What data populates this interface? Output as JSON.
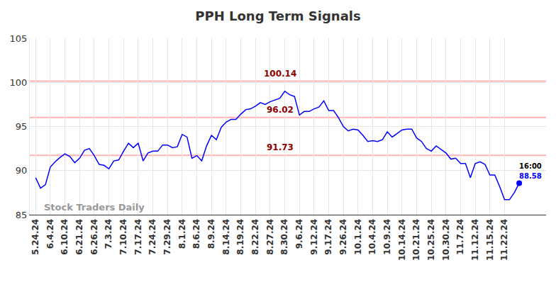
{
  "chart_data": {
    "type": "line",
    "title": "PPH Long Term Signals",
    "categories": [
      "5.24.24",
      null,
      null,
      "6.4.24",
      null,
      null,
      "6.10.24",
      null,
      null,
      "6.21.24",
      null,
      null,
      "6.26.24",
      null,
      null,
      "7.3.24",
      null,
      null,
      "7.10.24",
      null,
      null,
      "7.17.24",
      null,
      null,
      "7.24.24",
      null,
      null,
      "7.29.24",
      null,
      null,
      "8.1.24",
      null,
      null,
      "8.6.24",
      null,
      null,
      "8.9.24",
      null,
      null,
      "8.14.24",
      null,
      null,
      "8.19.24",
      null,
      null,
      "8.22.24",
      null,
      null,
      "8.27.24",
      null,
      null,
      "8.30.24",
      null,
      null,
      "9.6.24",
      null,
      null,
      "9.12.24",
      null,
      null,
      "9.17.24",
      null,
      null,
      "9.26.24",
      null,
      null,
      "10.1.24",
      null,
      null,
      "10.4.24",
      null,
      null,
      "10.9.24",
      null,
      null,
      "10.14.24",
      null,
      null,
      "10.21.24",
      null,
      null,
      "10.25.24",
      null,
      null,
      "10.30.24",
      null,
      null,
      "11.7.24",
      null,
      null,
      "11.12.24",
      null,
      null,
      "11.15.24",
      null,
      null,
      "11.22.24",
      null,
      null,
      null
    ],
    "values": [
      89.2,
      88.0,
      88.4,
      90.4,
      91.0,
      91.5,
      91.9,
      91.6,
      90.9,
      91.4,
      92.3,
      92.5,
      91.7,
      90.7,
      90.6,
      90.2,
      91.1,
      91.2,
      92.2,
      93.1,
      92.6,
      93.1,
      91.1,
      92.0,
      92.2,
      92.2,
      92.9,
      92.9,
      92.6,
      92.7,
      94.1,
      93.8,
      91.4,
      91.7,
      91.1,
      92.8,
      94.0,
      93.5,
      94.9,
      95.5,
      95.8,
      95.8,
      96.4,
      96.9,
      97.0,
      97.3,
      97.7,
      97.5,
      97.8,
      98.0,
      98.2,
      99.0,
      98.6,
      98.4,
      96.3,
      96.7,
      96.7,
      97.0,
      97.2,
      97.9,
      96.8,
      96.8,
      96.0,
      95.0,
      94.5,
      94.7,
      94.6,
      94.0,
      93.3,
      93.4,
      93.3,
      93.5,
      94.4,
      93.8,
      94.2,
      94.6,
      94.7,
      94.7,
      93.7,
      93.3,
      92.5,
      92.2,
      92.8,
      92.4,
      92.0,
      91.3,
      91.4,
      90.8,
      90.8,
      89.2,
      90.8,
      91.0,
      90.7,
      89.5,
      89.5,
      88.2,
      86.7,
      86.7,
      87.5,
      88.58
    ],
    "color": "#0000ff",
    "ylim": [
      85,
      105
    ],
    "yticks": [
      85,
      90,
      95,
      100,
      105
    ],
    "grid": true,
    "levels": [
      100.14,
      96.02,
      91.73
    ],
    "end_time": "16:00",
    "watermark": "Stock Traders Daily"
  }
}
